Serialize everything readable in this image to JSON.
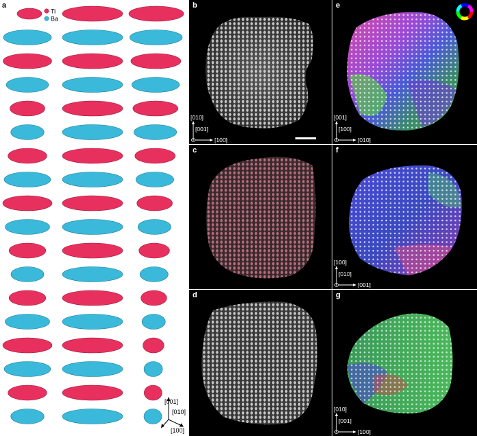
{
  "panels": {
    "a": {
      "label": "a",
      "legend": [
        {
          "name": "Ti",
          "color": "#e8305e"
        },
        {
          "name": "Ba",
          "color": "#3ab9da"
        }
      ],
      "axes": {
        "z": "[001]",
        "y": "[010]",
        "x": "[100]"
      }
    },
    "b": {
      "label": "b",
      "axes": {
        "top": "[010]",
        "mid": "[001]",
        "right": "[100]"
      },
      "tint": "#d8d8d8"
    },
    "c": {
      "label": "c",
      "tint": "#d27a8c"
    },
    "d": {
      "label": "d",
      "tint": "#d8d8d8"
    },
    "e": {
      "label": "e",
      "axes": {
        "top": "[001]",
        "mid": "[100]",
        "right": "[010]"
      }
    },
    "f": {
      "label": "f",
      "axes": {
        "top": "[100]",
        "mid": "[010]",
        "right": "[001]"
      }
    },
    "g": {
      "label": "g",
      "axes": {
        "top": "[010]",
        "mid": "[001]",
        "right": "[100]"
      }
    }
  },
  "colors": {
    "ti": "#e8305e",
    "ba": "#3ab9da",
    "background": "#000000"
  }
}
